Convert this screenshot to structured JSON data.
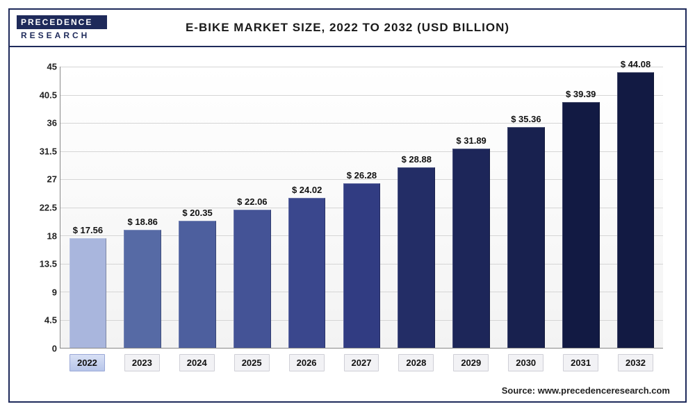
{
  "logo": {
    "top": "PRECEDENCE",
    "bottom": "RESEARCH"
  },
  "title": "E-BIKE MARKET SIZE, 2022 TO 2032 (USD BILLION)",
  "source": "Source: www.precedenceresearch.com",
  "chart": {
    "type": "bar",
    "categories": [
      "2022",
      "2023",
      "2024",
      "2025",
      "2026",
      "2027",
      "2028",
      "2029",
      "2030",
      "2031",
      "2032"
    ],
    "values": [
      17.56,
      18.86,
      20.35,
      22.06,
      24.02,
      26.28,
      28.88,
      31.89,
      35.36,
      39.39,
      44.08
    ],
    "value_prefix": "$ ",
    "bar_colors": [
      "#a9b6dd",
      "#566aa5",
      "#4d5f9e",
      "#445396",
      "#3a478d",
      "#313c82",
      "#232d66",
      "#1d2659",
      "#18214f",
      "#121a43",
      "#121a43"
    ],
    "active_category_index": 0,
    "ylim": [
      0,
      45
    ],
    "ytick_step": 4.5,
    "yticks": [
      0,
      4.5,
      9,
      13.5,
      18,
      22.5,
      27,
      31.5,
      36,
      40.5,
      45
    ],
    "background_color": "#ffffff",
    "grid_color": "#d5d5d5",
    "axis_color": "#888888",
    "label_fontsize": 13,
    "title_fontsize": 17,
    "bar_width": 0.68
  }
}
